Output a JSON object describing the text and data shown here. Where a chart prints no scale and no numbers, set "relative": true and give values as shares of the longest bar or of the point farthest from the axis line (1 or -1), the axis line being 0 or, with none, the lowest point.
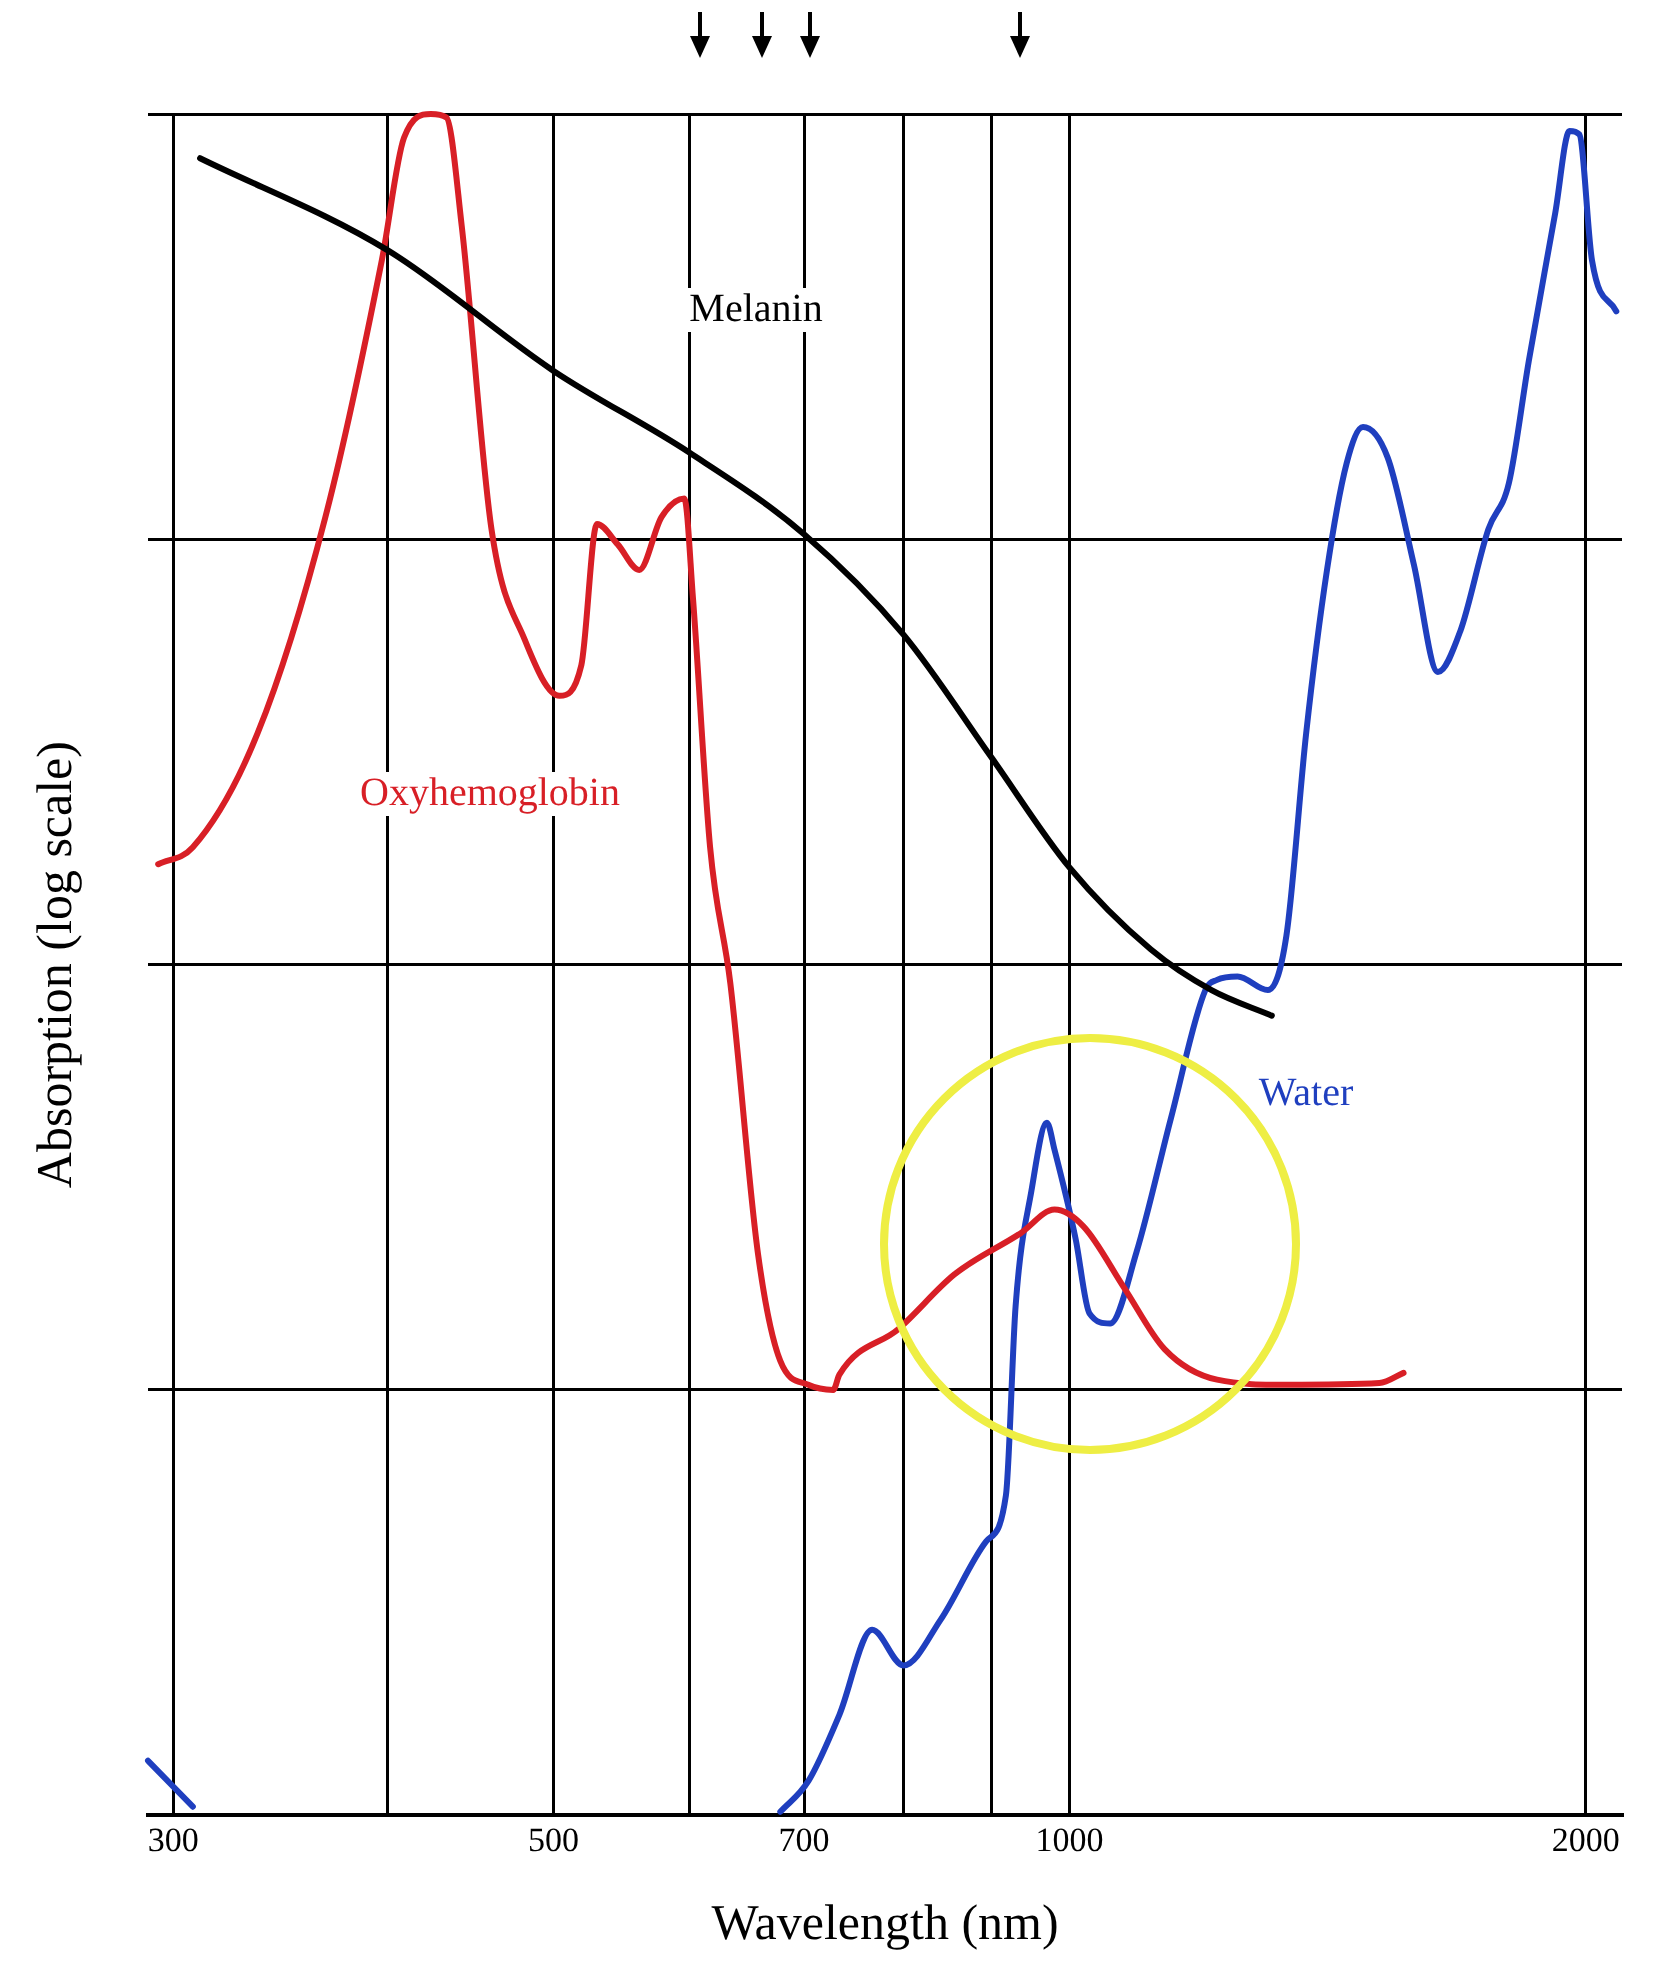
{
  "chart_data": {
    "type": "line",
    "xlabel": "Wavelength (nm)",
    "ylabel": "Absorption (log scale)",
    "relative": true,
    "log": "x",
    "grid": true,
    "legend": false,
    "tick_labels": "x",
    "marker": "none",
    "line_style": "solid",
    "xlim": [
      290,
      2100
    ],
    "xticks": [
      300,
      {
        "value": 400,
        "label": null
      },
      500,
      {
        "value": 600,
        "label": null
      },
      700,
      {
        "value": 800,
        "label": null
      },
      {
        "value": 900,
        "label": null
      },
      1000,
      2000
    ],
    "series": [
      {
        "name": "Melanin",
        "color": "#000000",
        "x": [
          311,
          400,
          500,
          600,
          700,
          800,
          900,
          1000,
          1115,
          1210,
          1312
        ],
        "values": [
          0.974,
          0.92,
          0.849,
          0.801,
          0.753,
          0.694,
          0.622,
          0.557,
          0.509,
          0.485,
          0.47
        ]
      },
      {
        "name": "Oxyhemoglobin",
        "color": "#d81f26",
        "x": [
          294,
          308,
          336,
          368,
          397,
          409,
          424,
          433,
          442,
          460,
          481,
          504,
          519,
          530,
          545,
          561,
          578,
          596,
          603,
          617,
          634,
          658,
          678,
          704,
          728,
          734,
          795,
          857,
          936,
          980,
          1019,
          1076,
          1136,
          1219,
          1338,
          1516,
          1566
        ],
        "values": [
          0.559,
          0.569,
          0.636,
          0.763,
          0.914,
          0.986,
          1.0,
          0.998,
          0.934,
          0.756,
          0.691,
          0.658,
          0.676,
          0.759,
          0.747,
          0.732,
          0.763,
          0.774,
          0.715,
          0.569,
          0.489,
          0.33,
          0.267,
          0.253,
          0.25,
          0.259,
          0.286,
          0.318,
          0.342,
          0.356,
          0.346,
          0.31,
          0.274,
          0.256,
          0.253,
          0.254,
          0.26
        ]
      },
      {
        "name": "Water",
        "color": "#1f3fbf",
        "x": [
          290,
          308,
          500,
          678,
          704,
          734,
          767,
          800,
          841,
          894,
          918,
          930,
          950,
          970,
          980,
          1008,
          1027,
          1056,
          1094,
          1146,
          1200,
          1219,
          1253,
          1305,
          1338,
          1374,
          1413,
          1451,
          1483,
          1533,
          1588,
          1640,
          1690,
          1755,
          1804,
          1853,
          1920,
          1957,
          1983,
          2017,
          2084
        ],
        "values": [
          0.032,
          0.005,
          null,
          0.002,
          0.02,
          0.059,
          0.109,
          0.088,
          0.115,
          0.161,
          0.188,
          0.299,
          0.367,
          0.407,
          0.391,
          0.339,
          0.295,
          0.289,
          0.331,
          0.41,
          0.485,
          0.491,
          0.493,
          0.485,
          0.517,
          0.636,
          0.732,
          0.795,
          0.816,
          0.798,
          0.735,
          0.672,
          0.696,
          0.756,
          0.783,
          0.855,
          0.942,
          0.99,
          0.988,
          0.914,
          0.884
        ]
      }
    ]
  }
}
